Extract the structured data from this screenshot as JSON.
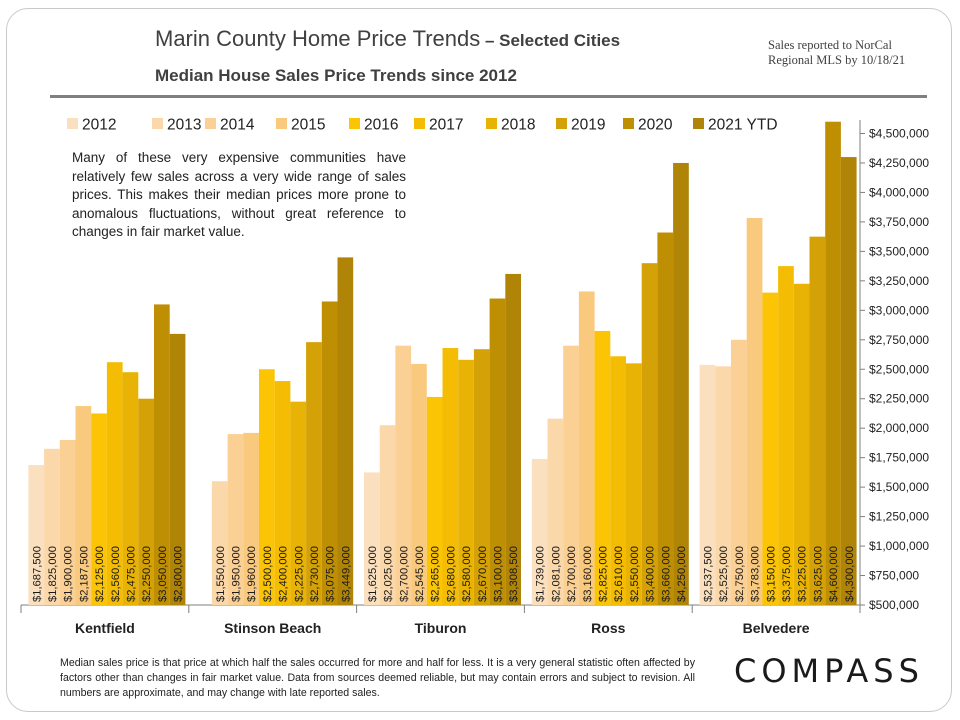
{
  "title": {
    "main": "Marin County Home Price Trends",
    "suffix": " – Selected Cities",
    "subtitle": "Median House Sales Price Trends since 2012"
  },
  "source_note": "Sales reported to NorCal Regional MLS by 10/18/21",
  "annotation": "Many of these very expensive communities have relatively few sales across a very wide range of sales prices. This makes their median prices more prone to anomalous fluctuations, without great reference to changes in fair market value.",
  "footnote": "Median sales price is that price at which half the sales occurred for more and half for less. It is a very general statistic often affected by factors other than changes in fair market value. Data from sources deemed reliable, but may contain errors and subject to revision. All numbers are approximate, and may change with late reported sales.",
  "logo": "COMPASS",
  "chart_data": {
    "type": "bar",
    "categories": [
      "Kentfield",
      "Stinson Beach",
      "Tiburon",
      "Ross",
      "Belvedere"
    ],
    "ylim": [
      500000,
      4600000
    ],
    "y_ticks": [
      500000,
      750000,
      1000000,
      1250000,
      1500000,
      1750000,
      2000000,
      2250000,
      2500000,
      2750000,
      3000000,
      3250000,
      3500000,
      3750000,
      4000000,
      4250000,
      4500000
    ],
    "y_tick_labels": [
      "$500,000",
      "$750,000",
      "$1,000,000",
      "$1,250,000",
      "$1,500,000",
      "$1,750,000",
      "$2,000,000",
      "$2,250,000",
      "$2,500,000",
      "$2,750,000",
      "$3,000,000",
      "$3,250,000",
      "$3,500,000",
      "$3,750,000",
      "$4,000,000",
      "$4,250,000",
      "$4,500,000"
    ],
    "y_axis_side": "right",
    "legend_position": "top",
    "series": [
      {
        "name": "2012",
        "color": "#fbe0c0",
        "values": [
          1687500,
          null,
          1625000,
          1739000,
          2537500
        ],
        "labels": [
          "$1,687,500",
          "",
          "$1,625,000",
          "$1,739,000",
          "$2,537,500"
        ]
      },
      {
        "name": "2013",
        "color": "#fbd8aa",
        "values": [
          1825000,
          1550000,
          2025000,
          2081000,
          2525000
        ],
        "labels": [
          "$1,825,000",
          "$1,550,000",
          "$2,025,000",
          "$2,081,000",
          "$2,525,000"
        ]
      },
      {
        "name": "2014",
        "color": "#fbd095",
        "values": [
          1900000,
          1950000,
          2700000,
          2700000,
          2750000
        ],
        "labels": [
          "$1,900,000",
          "$1,950,000",
          "$2,700,000",
          "$2,700,000",
          "$2,750,000"
        ]
      },
      {
        "name": "2015",
        "color": "#f9c97e",
        "values": [
          2187500,
          1960000,
          2545000,
          3160000,
          3783000
        ],
        "labels": [
          "$2,187,500",
          "$1,960,000",
          "$2,545,000",
          "$3,160,000",
          "$3,783,000"
        ]
      },
      {
        "name": "2016",
        "color": "#fbc405",
        "values": [
          2125000,
          2500000,
          2265000,
          2825000,
          3150000
        ],
        "labels": [
          "$2,125,000",
          "$2,500,000",
          "$2,265,000",
          "$2,825,000",
          "$3,150,000"
        ]
      },
      {
        "name": "2017",
        "color": "#f4bd04",
        "values": [
          2560000,
          2400000,
          2680000,
          2610000,
          3375000
        ],
        "labels": [
          "$2,560,000",
          "$2,400,000",
          "$2,680,000",
          "$2,610,000",
          "$3,375,000"
        ]
      },
      {
        "name": "2018",
        "color": "#e8b304",
        "values": [
          2475000,
          2225000,
          2580000,
          2550000,
          3225000
        ],
        "labels": [
          "$2,475,000",
          "$2,225,000",
          "$2,580,000",
          "$2,550,000",
          "$3,225,000"
        ]
      },
      {
        "name": "2019",
        "color": "#d4a206",
        "values": [
          2250000,
          2730000,
          2670000,
          3400000,
          3625000
        ],
        "labels": [
          "$2,250,000",
          "$2,730,000",
          "$2,670,000",
          "$3,400,000",
          "$3,625,000"
        ]
      },
      {
        "name": "2020",
        "color": "#bf8f03",
        "values": [
          3050000,
          3075000,
          3100000,
          3660000,
          4600000
        ],
        "labels": [
          "$3,050,000",
          "$3,075,000",
          "$3,100,000",
          "$3,660,000",
          "$4,600,000"
        ]
      },
      {
        "name": "2021 YTD",
        "color": "#b08407",
        "values": [
          2800000,
          3449000,
          3308500,
          4250000,
          4300000
        ],
        "labels": [
          "$2,800,000",
          "$3,449,000",
          "$3,308,500",
          "$4,250,000",
          "$4,300,000"
        ]
      }
    ]
  }
}
